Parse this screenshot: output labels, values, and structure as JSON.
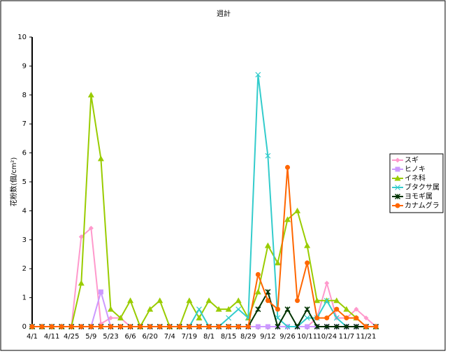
{
  "chart_data": {
    "type": "line",
    "title": "週計",
    "y_label": "花粉数(個/cm²)",
    "categories": [
      "4/1",
      null,
      "4/11",
      null,
      "4/25",
      null,
      "5/9",
      null,
      "5/23",
      null,
      "6/6",
      null,
      "6/20",
      null,
      "7/4",
      null,
      "7/19",
      null,
      "8/1",
      null,
      "8/15",
      null,
      "8/29",
      null,
      "9/12",
      null,
      "9/26",
      null,
      "10/11",
      null,
      "10/24",
      null,
      "11/7",
      null,
      "11/21",
      null
    ],
    "ylim": [
      0,
      10
    ],
    "yticks": [
      0,
      1,
      2,
      3,
      4,
      5,
      6,
      7,
      8,
      9,
      10
    ],
    "series": [
      {
        "name": "スギ",
        "color": "#ff99cc",
        "marker": "diamond",
        "values": [
          0,
          0,
          0,
          0,
          0,
          3.1,
          3.4,
          0.1,
          0.3,
          0.3,
          0,
          0,
          0,
          0,
          0,
          0,
          0,
          0,
          0,
          0,
          0,
          0,
          0,
          0,
          0,
          0,
          0,
          0,
          0,
          0.3,
          1.5,
          0.3,
          0.3,
          0.6,
          0.3,
          0
        ]
      },
      {
        "name": "ヒノキ",
        "color": "#cc99ff",
        "marker": "square",
        "values": [
          0,
          0,
          0,
          0,
          0,
          0,
          0,
          1.2,
          0,
          0,
          0,
          0,
          0,
          0,
          0,
          0,
          0,
          0,
          0,
          0,
          0,
          0,
          0,
          0,
          0,
          0,
          0,
          0,
          0,
          0,
          0,
          0,
          0,
          0,
          0,
          0
        ]
      },
      {
        "name": "イネ科",
        "color": "#99cc00",
        "marker": "triangle",
        "values": [
          0,
          0,
          0,
          0,
          0,
          1.5,
          8.0,
          5.8,
          0.6,
          0.3,
          0.9,
          0,
          0.6,
          0.9,
          0,
          0,
          0.9,
          0.3,
          0.9,
          0.6,
          0.6,
          0.9,
          0.3,
          1.2,
          2.8,
          2.2,
          3.7,
          4.0,
          2.8,
          0.9,
          0.9,
          0.9,
          0.6,
          0.3,
          0,
          0
        ]
      },
      {
        "name": "ブタクサ属",
        "color": "#33cccc",
        "marker": "cross",
        "values": [
          0,
          0,
          0,
          0,
          0,
          0,
          0,
          0,
          0,
          0,
          0,
          0,
          0,
          0,
          0,
          0,
          0,
          0.6,
          0,
          0,
          0.3,
          0.6,
          0.3,
          8.7,
          5.9,
          0.3,
          0,
          0,
          0.3,
          0.3,
          0.9,
          0.3,
          0,
          0,
          0,
          0
        ]
      },
      {
        "name": "ヨモギ属",
        "color": "#003300",
        "marker": "star",
        "values": [
          0,
          0,
          0,
          0,
          0,
          0,
          0,
          0,
          0,
          0,
          0,
          0,
          0,
          0,
          0,
          0,
          0,
          0,
          0,
          0,
          0,
          0,
          0,
          0.6,
          1.2,
          0,
          0.6,
          0,
          0.6,
          0,
          0,
          0,
          0,
          0,
          0,
          0
        ]
      },
      {
        "name": "カナムグラ",
        "color": "#ff6600",
        "marker": "circle",
        "values": [
          0,
          0,
          0,
          0,
          0,
          0,
          0,
          0,
          0,
          0,
          0,
          0,
          0,
          0,
          0,
          0,
          0,
          0,
          0,
          0,
          0,
          0,
          0,
          1.8,
          0.9,
          0.6,
          5.5,
          0.9,
          2.2,
          0.3,
          0.3,
          0.6,
          0.3,
          0.3,
          0,
          0
        ]
      }
    ]
  }
}
